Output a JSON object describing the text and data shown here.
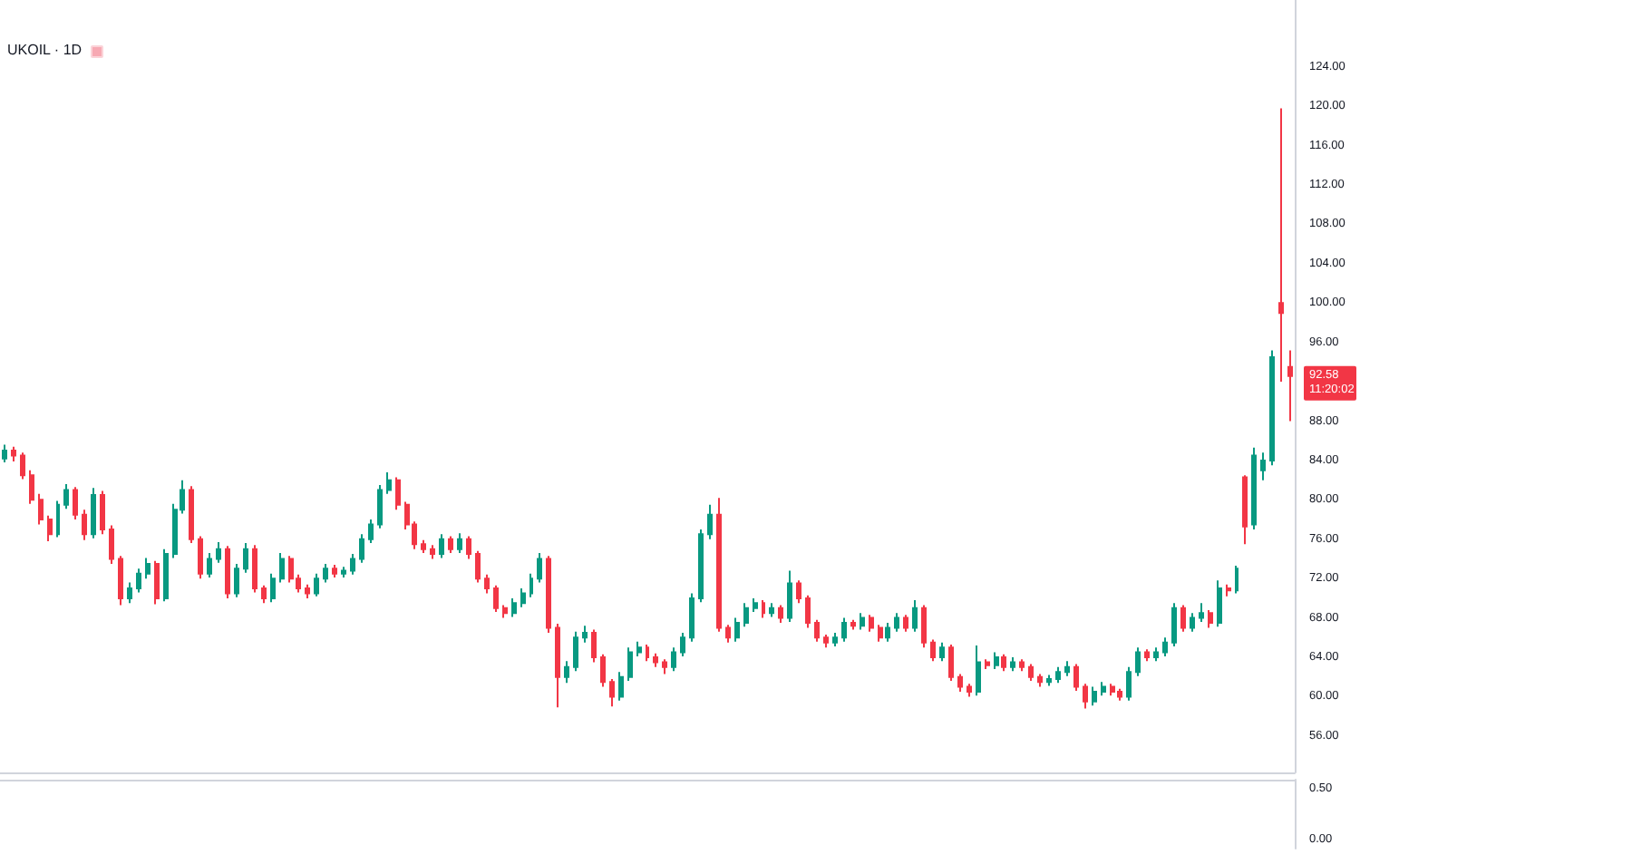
{
  "chart_data": [
    {
      "type": "candlestick",
      "title": "UKOIL · 1D",
      "categories": [
        null,
        null,
        null,
        null,
        null,
        null,
        null,
        null,
        null,
        null,
        null,
        null,
        null,
        null,
        null,
        null,
        null,
        null,
        null,
        null,
        null,
        null,
        null,
        null,
        null,
        null,
        null,
        null,
        null,
        null,
        null,
        null,
        null,
        null,
        null,
        null,
        null,
        null,
        null,
        null,
        null,
        null,
        null,
        null,
        null,
        null,
        null,
        null,
        null,
        null,
        null,
        null,
        null,
        null,
        null,
        null,
        null,
        null,
        null,
        null,
        null,
        null,
        null,
        null,
        null,
        null,
        null,
        null,
        null,
        null,
        null,
        null,
        null,
        null,
        null,
        null,
        null,
        null,
        null,
        null,
        null,
        null,
        null,
        null,
        null,
        null,
        null,
        null,
        null,
        null,
        null,
        null,
        null,
        null,
        null,
        null,
        null,
        null,
        null,
        null,
        null,
        null,
        null,
        null,
        null,
        null,
        null,
        null,
        null,
        null,
        null,
        null,
        null,
        null,
        null,
        null,
        null,
        null,
        null,
        null,
        null,
        null,
        null,
        null,
        null,
        null,
        null,
        null,
        null,
        null,
        null,
        null,
        null,
        null,
        null,
        null,
        null,
        null,
        null,
        null,
        null,
        null,
        null,
        null,
        null
      ],
      "ohlc": [
        [
          84.2,
          85.6,
          83.8,
          85
        ],
        [
          85,
          85.4,
          83.9,
          84.5
        ],
        [
          84.5,
          84.8,
          82.1,
          82.5
        ],
        [
          82.5,
          83,
          79.6,
          80
        ],
        [
          80,
          80.6,
          77.5,
          78
        ],
        [
          78,
          78.4,
          75.8,
          76.5
        ],
        [
          76.5,
          79.9,
          76.2,
          79.5
        ],
        [
          79.5,
          81.6,
          79.1,
          81
        ],
        [
          81,
          81.3,
          78,
          78.5
        ],
        [
          78.5,
          79,
          75.9,
          76.5
        ],
        [
          76.5,
          81.2,
          76.1,
          80.5
        ],
        [
          80.5,
          80.9,
          76.5,
          77
        ],
        [
          77,
          77.4,
          73.5,
          74
        ],
        [
          74,
          74.3,
          69.3,
          70
        ],
        [
          70,
          71.6,
          69.5,
          71
        ],
        [
          71,
          73,
          70.6,
          72.5
        ],
        [
          72.5,
          74.1,
          72,
          73.5
        ],
        [
          73.5,
          73.8,
          69.4,
          70
        ],
        [
          70,
          75,
          69.7,
          74.5
        ],
        [
          74.5,
          79.6,
          74.1,
          79
        ],
        [
          79,
          82,
          78.6,
          81
        ],
        [
          81,
          81.4,
          75.6,
          76
        ],
        [
          76,
          76.3,
          72,
          72.5
        ],
        [
          72.5,
          74.6,
          72.1,
          74
        ],
        [
          74,
          75.7,
          73.6,
          75
        ],
        [
          75,
          75.3,
          70,
          70.5
        ],
        [
          70.5,
          73.5,
          70.1,
          73
        ],
        [
          73,
          75.6,
          72.6,
          75
        ],
        [
          75,
          75.4,
          70.6,
          71
        ],
        [
          71,
          71.3,
          69.5,
          70
        ],
        [
          70,
          72.5,
          69.6,
          72
        ],
        [
          72,
          74.6,
          71.6,
          74
        ],
        [
          74,
          74.3,
          71.6,
          72
        ],
        [
          72,
          72.4,
          70.6,
          71
        ],
        [
          71,
          71.4,
          70,
          70.5
        ],
        [
          70.5,
          72.5,
          70.2,
          72
        ],
        [
          72,
          73.5,
          71.6,
          73
        ],
        [
          73,
          73.4,
          72.1,
          72.5
        ],
        [
          72.5,
          73.2,
          72.1,
          72.8
        ],
        [
          72.8,
          74.5,
          72.4,
          74
        ],
        [
          74,
          76.5,
          73.6,
          76
        ],
        [
          76,
          78,
          75.6,
          77.5
        ],
        [
          77.5,
          81.5,
          77.1,
          81
        ],
        [
          81,
          82.8,
          80.6,
          82
        ],
        [
          82,
          82.3,
          79,
          79.5
        ],
        [
          79.5,
          79.8,
          77,
          77.5
        ],
        [
          77.5,
          77.8,
          75,
          75.5
        ],
        [
          75.5,
          75.9,
          74.6,
          75
        ],
        [
          75,
          75.4,
          74,
          74.5
        ],
        [
          74.5,
          76.5,
          74.1,
          76
        ],
        [
          76,
          76.3,
          74.6,
          75
        ],
        [
          75,
          76.6,
          74.6,
          76
        ],
        [
          76,
          76.3,
          74,
          74.5
        ],
        [
          74.5,
          74.8,
          71.6,
          72
        ],
        [
          72,
          72.4,
          70.5,
          71
        ],
        [
          71,
          71.3,
          68.6,
          69
        ],
        [
          69,
          69.3,
          68,
          68.5
        ],
        [
          68.5,
          70,
          68.1,
          69.5
        ],
        [
          69.5,
          71,
          69.1,
          70.5
        ],
        [
          70.5,
          72.5,
          70.1,
          72
        ],
        [
          72,
          74.6,
          71.6,
          74
        ],
        [
          74,
          74.3,
          66.5,
          67
        ],
        [
          67,
          67.4,
          58.9,
          62
        ],
        [
          62,
          63.6,
          61.4,
          63
        ],
        [
          63,
          66.6,
          62.6,
          66
        ],
        [
          66,
          67.2,
          65.5,
          66.5
        ],
        [
          66.5,
          66.8,
          63.5,
          64
        ],
        [
          64,
          64.3,
          61,
          61.5
        ],
        [
          61.5,
          61.8,
          59,
          60
        ],
        [
          60,
          62.5,
          59.6,
          62
        ],
        [
          62,
          65,
          61.6,
          64.5
        ],
        [
          64.5,
          65.6,
          64.1,
          65
        ],
        [
          65,
          65.3,
          63.6,
          64
        ],
        [
          64,
          64.4,
          63,
          63.5
        ],
        [
          63.5,
          63.8,
          62.3,
          63
        ],
        [
          63,
          65,
          62.6,
          64.5
        ],
        [
          64.5,
          66.5,
          64.1,
          66
        ],
        [
          66,
          70.5,
          65.6,
          70
        ],
        [
          70,
          77,
          69.6,
          76.5
        ],
        [
          76.5,
          79.5,
          76,
          78.5
        ],
        [
          78.5,
          80.2,
          66.6,
          67
        ],
        [
          67,
          67.3,
          65.5,
          66
        ],
        [
          66,
          68,
          65.6,
          67.5
        ],
        [
          67.5,
          69.5,
          67.1,
          69
        ],
        [
          69,
          70,
          68.6,
          69.5
        ],
        [
          69.5,
          69.8,
          68,
          68.5
        ],
        [
          68.5,
          69.5,
          68.1,
          69
        ],
        [
          69,
          69.3,
          67.5,
          68
        ],
        [
          68,
          72.8,
          67.6,
          71.5
        ],
        [
          71.5,
          71.8,
          69.5,
          70
        ],
        [
          70,
          70.3,
          67,
          67.5
        ],
        [
          67.5,
          67.8,
          65.6,
          66
        ],
        [
          66,
          66.3,
          65,
          65.5
        ],
        [
          65.5,
          66.5,
          65.1,
          66
        ],
        [
          66,
          68,
          65.6,
          67.5
        ],
        [
          67.5,
          67.8,
          66.8,
          67.2
        ],
        [
          67.2,
          68.5,
          66.8,
          68
        ],
        [
          68,
          68.3,
          66.6,
          67
        ],
        [
          67,
          67.3,
          65.6,
          66
        ],
        [
          66,
          67.5,
          65.6,
          67
        ],
        [
          67,
          68.5,
          66.6,
          68
        ],
        [
          68,
          68.3,
          66.6,
          67
        ],
        [
          67,
          69.8,
          66.6,
          69
        ],
        [
          69,
          69.3,
          65,
          65.5
        ],
        [
          65.5,
          65.8,
          63.6,
          64
        ],
        [
          64,
          65.5,
          63.6,
          65
        ],
        [
          65,
          65.3,
          61.6,
          62
        ],
        [
          62,
          62.3,
          60.5,
          61
        ],
        [
          61,
          61.3,
          60,
          60.5
        ],
        [
          60.5,
          65.2,
          60.1,
          63.5
        ],
        [
          63.5,
          63.8,
          62.8,
          63.2
        ],
        [
          63.2,
          64.5,
          62.8,
          64
        ],
        [
          64,
          64.3,
          62.6,
          63
        ],
        [
          63,
          64,
          62.6,
          63.5
        ],
        [
          63.5,
          63.8,
          62.6,
          63
        ],
        [
          63,
          63.3,
          61.6,
          62
        ],
        [
          62,
          62.3,
          61,
          61.5
        ],
        [
          61.5,
          62.2,
          61.1,
          61.8
        ],
        [
          61.8,
          63,
          61.4,
          62.5
        ],
        [
          62.5,
          63.6,
          62.1,
          63
        ],
        [
          63,
          63.3,
          60.6,
          61
        ],
        [
          61,
          61.3,
          58.8,
          59.5
        ],
        [
          59.5,
          61,
          59.1,
          60.5
        ],
        [
          60.5,
          61.5,
          60.1,
          61
        ],
        [
          61,
          61.3,
          60.1,
          60.5
        ],
        [
          60.5,
          60.8,
          59.6,
          60
        ],
        [
          60,
          63,
          59.6,
          62.5
        ],
        [
          62.5,
          65,
          62.1,
          64.5
        ],
        [
          64.5,
          64.8,
          63.6,
          64
        ],
        [
          64,
          65,
          63.6,
          64.5
        ],
        [
          64.5,
          66,
          64.1,
          65.5
        ],
        [
          65.5,
          69.5,
          65.1,
          69
        ],
        [
          69,
          69.3,
          66.6,
          67
        ],
        [
          67,
          68.5,
          66.6,
          68
        ],
        [
          68,
          69.5,
          67.6,
          68.5
        ],
        [
          68.5,
          68.8,
          67,
          67.5
        ],
        [
          67.5,
          71.8,
          67.1,
          71
        ],
        [
          71,
          71.4,
          70.2,
          70.8
        ],
        [
          70.8,
          73.3,
          70.5,
          73
        ],
        [
          82.3,
          82.5,
          75.5,
          77.3
        ],
        [
          77.5,
          85.3,
          77,
          84.5
        ],
        [
          83,
          84.8,
          82,
          84
        ],
        [
          84,
          95.2,
          83.5,
          94.5
        ],
        [
          100,
          119.8,
          92,
          99
        ],
        [
          93.5,
          95.2,
          88,
          92.58
        ]
      ],
      "colors": [
        "#089981",
        "#f23645",
        "#f23645",
        "#f23645",
        "#f23645",
        "#f23645",
        "#089981",
        "#089981",
        "#f23645",
        "#f23645",
        "#089981",
        "#f23645",
        "#f23645",
        "#f23645",
        "#089981",
        "#089981",
        "#089981",
        "#f23645",
        "#089981",
        "#089981",
        "#089981",
        "#f23645",
        "#f23645",
        "#089981",
        "#089981",
        "#f23645",
        "#089981",
        "#089981",
        "#f23645",
        "#f23645",
        "#089981",
        "#089981",
        "#f23645",
        "#f23645",
        "#f23645",
        "#089981",
        "#089981",
        "#f23645",
        "#089981",
        "#089981",
        "#089981",
        "#089981",
        "#089981",
        "#089981",
        "#f23645",
        "#f23645",
        "#f23645",
        "#f23645",
        "#f23645",
        "#089981",
        "#f23645",
        "#089981",
        "#f23645",
        "#f23645",
        "#f23645",
        "#f23645",
        "#f23645",
        "#089981",
        "#089981",
        "#089981",
        "#089981",
        "#f23645",
        "#f23645",
        "#089981",
        "#089981",
        "#089981",
        "#f23645",
        "#f23645",
        "#f23645",
        "#089981",
        "#089981",
        "#089981",
        "#f23645",
        "#f23645",
        "#f23645",
        "#089981",
        "#089981",
        "#089981",
        "#089981",
        "#089981",
        "#f23645",
        "#f23645",
        "#089981",
        "#089981",
        "#089981",
        "#f23645",
        "#089981",
        "#f23645",
        "#089981",
        "#f23645",
        "#f23645",
        "#f23645",
        "#f23645",
        "#089981",
        "#089981",
        "#f23645",
        "#089981",
        "#f23645",
        "#f23645",
        "#089981",
        "#089981",
        "#f23645",
        "#089981",
        "#f23645",
        "#f23645",
        "#089981",
        "#f23645",
        "#f23645",
        "#f23645",
        "#089981",
        "#f23645",
        "#089981",
        "#f23645",
        "#089981",
        "#f23645",
        "#f23645",
        "#f23645",
        "#089981",
        "#089981",
        "#089981",
        "#f23645",
        "#f23645",
        "#089981",
        "#089981",
        "#f23645",
        "#f23645",
        "#089981",
        "#089981",
        "#f23645",
        "#089981",
        "#089981",
        "#089981",
        "#f23645",
        "#089981",
        "#089981",
        "#f23645",
        "#089981",
        "#f23645",
        "#089981",
        "#f23645",
        "#089981",
        "#089981",
        "#089981",
        "#f23645",
        "#f23645"
      ],
      "ylim": [
        52.3,
        130.8
      ],
      "yticks": [
        {
          "value": 56,
          "label": "56.00"
        },
        {
          "value": 60,
          "label": "60.00"
        },
        {
          "value": 64,
          "label": "64.00"
        },
        {
          "value": 68,
          "label": "68.00"
        },
        {
          "value": 72,
          "label": "72.00"
        },
        {
          "value": 76,
          "label": "76.00"
        },
        {
          "value": 80,
          "label": "80.00"
        },
        {
          "value": 84,
          "label": "84.00"
        },
        {
          "value": 88,
          "label": "88.00"
        },
        {
          "value": 96,
          "label": "96.00"
        },
        {
          "value": 100,
          "label": "100.00"
        },
        {
          "value": 104,
          "label": "104.00"
        },
        {
          "value": 108,
          "label": "108.00"
        },
        {
          "value": 112,
          "label": "112.00"
        },
        {
          "value": 116,
          "label": "116.00"
        },
        {
          "value": 120,
          "label": "120.00"
        },
        {
          "value": 124,
          "label": "124.00"
        }
      ],
      "tick_labels": "y",
      "annotations": [
        "92.58",
        "11:20:02"
      ]
    },
    {
      "type": "line",
      "categories": [
        null,
        null,
        null,
        null,
        null,
        null,
        null,
        null,
        null,
        null,
        null,
        null,
        null,
        null,
        null,
        null,
        null,
        null,
        null,
        null,
        null,
        null,
        null,
        null,
        null,
        null,
        null,
        null,
        null,
        null,
        null,
        null,
        null,
        null,
        null,
        null,
        null,
        null,
        null,
        null,
        null,
        null,
        null,
        null,
        null,
        null,
        null,
        null,
        null,
        null,
        null,
        null,
        null,
        null,
        null,
        null,
        null,
        null,
        null,
        null,
        null,
        null,
        null,
        null,
        null,
        null,
        null,
        null,
        null,
        null,
        null,
        null,
        null,
        null,
        null,
        null,
        null,
        null,
        null,
        null,
        null,
        null,
        null,
        null,
        null,
        null,
        null,
        null,
        null,
        null,
        null,
        null,
        null,
        null,
        null,
        null,
        null,
        null,
        null,
        null,
        null,
        null,
        null,
        null,
        null,
        null,
        null,
        null,
        null,
        null,
        null,
        null,
        null,
        null,
        null,
        null,
        null,
        null,
        null,
        null,
        null,
        null,
        null,
        null,
        null,
        null,
        null,
        null,
        null,
        null,
        null,
        null,
        null,
        null,
        null,
        null,
        null,
        null,
        null,
        null,
        null,
        null,
        null,
        null,
        null
      ],
      "ylim": [
        -0.09,
        0.59
      ],
      "yticks": [
        {
          "value": 0.5,
          "label": "0.50"
        },
        {
          "value": 0,
          "label": "0.00"
        }
      ],
      "tick_labels": "y"
    }
  ]
}
